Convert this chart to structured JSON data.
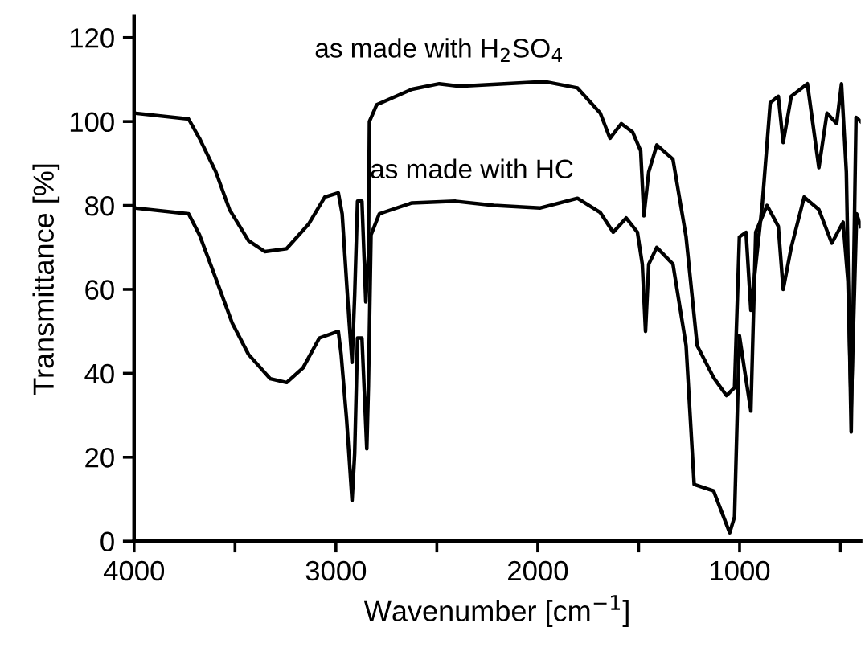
{
  "chart_data": {
    "type": "line",
    "xlabel": "Wavenumber [cm$^{−1}$]",
    "ylabel": "Transmittance [%]",
    "xlim": [
      4000,
      400
    ],
    "ylim": [
      0,
      125
    ],
    "xticks": [
      4000,
      {
        "value": 3500,
        "label": null
      },
      3000,
      {
        "value": 2500,
        "label": null
      },
      2000,
      {
        "value": 1500,
        "label": null
      },
      1000,
      {
        "value": 500,
        "label": null
      }
    ],
    "yticks": [
      0,
      20,
      40,
      60,
      80,
      100,
      120
    ],
    "grid": false,
    "legend": false,
    "marker": "none",
    "line_style": "solid",
    "annotations": [
      "as made with H$_{2}$SO$_{4}$",
      "as made with HC"
    ],
    "series": [
      {
        "color": "#000000",
        "x": [
          4000,
          3730,
          3676,
          3595,
          3527,
          3433,
          3352,
          3244,
          3136,
          3055,
          2988,
          2969,
          2934,
          2920,
          2907,
          2893,
          2871,
          2852,
          2839,
          2834,
          2798,
          2623,
          2488,
          2388,
          1963,
          1803,
          1690,
          1642,
          1586,
          1530,
          1490,
          1474,
          1450,
          1410,
          1330,
          1265,
          1210,
          1129,
          1065,
          1025,
          1001,
          968,
          944,
          888,
          848,
          808,
          784,
          744,
          664,
          607,
          567,
          519,
          495,
          471,
          447,
          423,
          400
        ],
        "values": [
          102,
          100.6,
          96,
          88,
          79,
          71.6,
          69,
          69.7,
          75.5,
          82,
          83,
          78,
          52,
          42.6,
          58.7,
          81,
          81,
          57,
          68,
          100,
          104,
          107.7,
          109,
          108.4,
          109.5,
          108,
          102,
          96,
          99.5,
          97.5,
          93,
          77.5,
          88,
          94.4,
          91,
          72.5,
          46.6,
          39,
          34.7,
          36.6,
          72.5,
          73.6,
          55,
          80,
          104.5,
          106,
          95,
          106,
          109,
          89,
          102,
          99.5,
          109,
          88,
          26,
          101,
          100
        ]
      },
      {
        "color": "#000000",
        "x": [
          4000,
          3730,
          3676,
          3595,
          3514,
          3433,
          3325,
          3244,
          3163,
          3082,
          2988,
          2974,
          2947,
          2920,
          2907,
          2893,
          2871,
          2847,
          2839,
          2826,
          2785,
          2623,
          2407,
          2218,
          1987,
          1803,
          1690,
          1626,
          1562,
          1506,
          1482,
          1466,
          1450,
          1410,
          1330,
          1265,
          1225,
          1129,
          1081,
          1049,
          1025,
          1001,
          976,
          944,
          920,
          864,
          808,
          784,
          744,
          680,
          607,
          543,
          487,
          463,
          447,
          420,
          400
        ],
        "values": [
          79.4,
          78,
          73,
          62.6,
          52,
          44.5,
          38.7,
          37.8,
          41.3,
          48.4,
          50,
          44.5,
          29,
          9.7,
          21,
          48.4,
          48.4,
          22,
          36.8,
          73,
          78,
          80.6,
          81,
          80,
          79.4,
          81.7,
          78.3,
          73.6,
          77,
          73.6,
          66,
          50,
          66,
          70,
          66,
          46.6,
          13.5,
          12,
          6,
          2,
          5.8,
          49,
          41,
          31,
          73.6,
          80,
          75,
          60,
          70,
          82,
          79,
          71,
          76,
          62,
          32,
          78,
          75
        ]
      }
    ]
  }
}
